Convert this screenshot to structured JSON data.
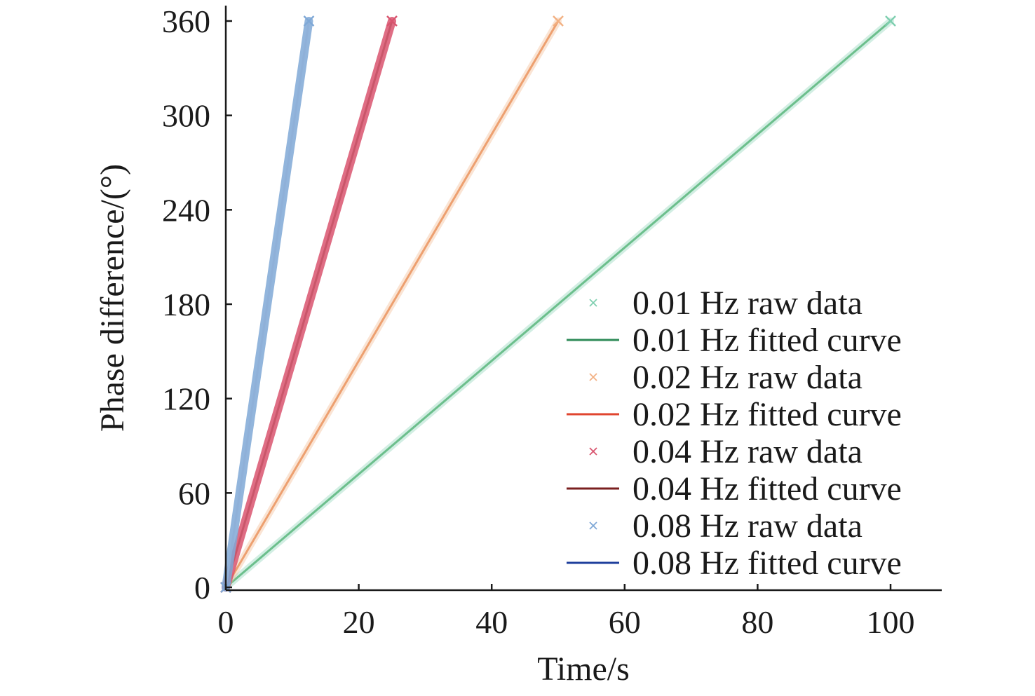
{
  "chart_data": {
    "type": "line",
    "xlabel": "Time/s",
    "ylabel": "Phase difference/(°)",
    "xlim": [
      0,
      107.5
    ],
    "ylim": [
      0,
      363
    ],
    "xticks": [
      0,
      20,
      40,
      60,
      80,
      100
    ],
    "yticks": [
      0,
      60,
      120,
      180,
      240,
      300,
      360
    ],
    "grid": false,
    "legend_position": "lower-right",
    "series": [
      {
        "name": "0.01 Hz raw data",
        "kind": "scatter",
        "marker": "x",
        "color": "#7fcfb0",
        "x": [
          0,
          100
        ],
        "y": [
          0,
          360
        ]
      },
      {
        "name": "0.01 Hz fitted curve",
        "kind": "line",
        "color": "#2e8b57",
        "x": [
          0,
          100
        ],
        "y": [
          0,
          360
        ]
      },
      {
        "name": "0.02 Hz raw data",
        "kind": "scatter",
        "marker": "x",
        "color": "#f2b183",
        "x": [
          0,
          50
        ],
        "y": [
          0,
          360
        ]
      },
      {
        "name": "0.02 Hz fitted curve",
        "kind": "line",
        "color": "#e0452f",
        "x": [
          0,
          50
        ],
        "y": [
          0,
          360
        ]
      },
      {
        "name": "0.04 Hz raw data",
        "kind": "scatter",
        "marker": "x",
        "color": "#d9546e",
        "x": [
          0,
          25
        ],
        "y": [
          0,
          360
        ]
      },
      {
        "name": "0.04 Hz fitted curve",
        "kind": "line",
        "color": "#7a1f1f",
        "x": [
          0,
          25
        ],
        "y": [
          0,
          360
        ]
      },
      {
        "name": "0.08 Hz raw data",
        "kind": "scatter",
        "marker": "x",
        "color": "#7fa8d6",
        "x": [
          0,
          12.5
        ],
        "y": [
          0,
          360
        ]
      },
      {
        "name": "0.08 Hz fitted curve",
        "kind": "line",
        "color": "#1f3f9c",
        "x": [
          0,
          12.5
        ],
        "y": [
          0,
          360
        ]
      }
    ]
  }
}
